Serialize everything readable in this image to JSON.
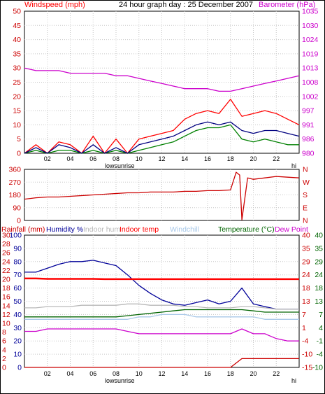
{
  "header": {
    "left_label": "Windspeed (mph)",
    "title": "24 hour graph day : 25 December 2007",
    "right_label": "Barometer (hPa)"
  },
  "x_axis": {
    "ticks": [
      "02",
      "04",
      "06",
      "08",
      "10",
      "12",
      "14",
      "16",
      "18",
      "20",
      "22"
    ],
    "sun_labels": [
      "low",
      "sunrise"
    ],
    "tail_label": "hi"
  },
  "bottom_header": {
    "rainfall": "Rainfall (mm)",
    "humidity": "Humidity %",
    "indoor_hum": "Indoor hum",
    "indoor_temp": "Indoor temp",
    "windchill": "Windchill",
    "temperature": "Temperature (°C)",
    "dew_point": "Dew Point"
  },
  "colors": {
    "windspeed": "#ff0000",
    "gust": "#008000",
    "avg": "#000080",
    "barometer": "#cc00cc",
    "direction": "#cc0000",
    "humidity": "#000099",
    "indoor_hum": "#b8b8b8",
    "indoor_temp": "#ff0000",
    "windchill": "#a8c8e8",
    "temperature": "#006400",
    "dew_point": "#cc00cc",
    "rainfall": "#cc0000"
  },
  "chart_data": [
    {
      "type": "line",
      "panel": "wind",
      "y_left_ticks": [
        "0",
        "5",
        "10",
        "15",
        "20",
        "25",
        "30",
        "35",
        "40",
        "45",
        "50"
      ],
      "y_right_ticks": [
        "980",
        "986",
        "991",
        "997",
        "1002",
        "1008",
        "1013",
        "1019",
        "1024",
        "1030",
        "1035"
      ],
      "ylim_left": [
        0,
        50
      ],
      "ylim_right": [
        980,
        1035
      ],
      "x": [
        0,
        1,
        2,
        3,
        4,
        5,
        6,
        7,
        8,
        9,
        10,
        11,
        12,
        13,
        14,
        15,
        16,
        17,
        18,
        19,
        20,
        21,
        22,
        23,
        24
      ],
      "series": [
        {
          "key": "windspeed",
          "axis": "left",
          "values": [
            0,
            3,
            0,
            4,
            3,
            0,
            6,
            0,
            5,
            0,
            5,
            6,
            7,
            8,
            12,
            14,
            15,
            14,
            19,
            13,
            14,
            15,
            14,
            12,
            10
          ]
        },
        {
          "key": "gust",
          "axis": "left",
          "values": [
            0,
            1,
            0,
            1,
            1,
            0,
            1,
            0,
            1,
            0,
            1,
            2,
            3,
            4,
            6,
            8,
            9,
            9,
            10,
            5,
            4,
            5,
            4,
            3,
            3
          ]
        },
        {
          "key": "avg",
          "axis": "left",
          "values": [
            0,
            2,
            0,
            3,
            2,
            0,
            3,
            0,
            2,
            0,
            3,
            4,
            5,
            6,
            8,
            10,
            11,
            10,
            11,
            8,
            7,
            8,
            8,
            7,
            6
          ]
        },
        {
          "key": "barometer",
          "axis": "right",
          "values": [
            1013,
            1012,
            1012,
            1012,
            1011,
            1011,
            1011,
            1011,
            1010,
            1010,
            1009,
            1008,
            1007,
            1006,
            1005,
            1005,
            1005,
            1004,
            1004,
            1005,
            1006,
            1007,
            1008,
            1009,
            1010
          ]
        }
      ]
    },
    {
      "type": "line",
      "panel": "direction",
      "y_left_ticks": [
        "0",
        "90",
        "180",
        "270",
        "360"
      ],
      "y_right_ticks": [
        "N",
        "E",
        "S",
        "W",
        "N"
      ],
      "ylim": [
        0,
        360
      ],
      "x": [
        0,
        1,
        2,
        3,
        4,
        5,
        6,
        7,
        8,
        9,
        10,
        11,
        12,
        13,
        14,
        15,
        16,
        17,
        18,
        18.5,
        18.8,
        19,
        19.5,
        20,
        21,
        22,
        23,
        24
      ],
      "series": [
        {
          "key": "direction",
          "values": [
            150,
            160,
            165,
            165,
            170,
            175,
            180,
            185,
            190,
            195,
            195,
            200,
            200,
            200,
            205,
            205,
            210,
            210,
            215,
            340,
            320,
            5,
            300,
            290,
            300,
            310,
            305,
            300
          ]
        }
      ]
    },
    {
      "type": "line",
      "panel": "climate",
      "y_ticks_rain": [
        "0",
        "2",
        "4",
        "6",
        "8",
        "10",
        "12",
        "14",
        "16",
        "18",
        "20",
        "22",
        "24",
        "26",
        "28",
        "30"
      ],
      "y_ticks_hum": [
        "0",
        "10",
        "20",
        "30",
        "40",
        "50",
        "60",
        "70",
        "80",
        "90",
        "100"
      ],
      "y_ticks_temp_a": [
        "-15",
        "-10",
        "-4",
        "1",
        "7",
        "13",
        "18",
        "24",
        "29",
        "35",
        "40"
      ],
      "y_ticks_temp_b": [
        "-10",
        "-4",
        "-1",
        "4",
        "7",
        "13",
        "18",
        "24",
        "29",
        "35",
        "40"
      ],
      "ylim_rain": [
        0,
        30
      ],
      "ylim_hum": [
        0,
        100
      ],
      "ylim_temp": [
        -15,
        40
      ],
      "x": [
        0,
        1,
        2,
        3,
        4,
        5,
        6,
        7,
        8,
        9,
        10,
        11,
        12,
        13,
        14,
        15,
        16,
        17,
        18,
        19,
        20,
        21,
        22,
        23,
        24
      ],
      "series": [
        {
          "key": "humidity",
          "axis": "hum",
          "values": [
            72,
            72,
            75,
            78,
            80,
            80,
            81,
            79,
            77,
            70,
            62,
            56,
            51,
            48,
            47,
            49,
            51,
            48,
            50,
            60,
            48,
            46,
            44,
            44,
            44
          ]
        },
        {
          "key": "indoor_hum",
          "axis": "hum",
          "values": [
            45,
            45,
            46,
            46,
            46,
            47,
            47,
            47,
            47,
            48,
            48,
            47,
            47,
            47,
            46,
            46,
            45,
            45,
            45,
            46,
            46,
            45,
            44,
            44,
            44
          ]
        },
        {
          "key": "indoor_temp",
          "axis": "temp",
          "values": [
            22,
            22,
            21.8,
            21.8,
            21.8,
            21.8,
            21.8,
            21.7,
            21.7,
            21.7,
            21.7,
            21.7,
            21.7,
            21.7,
            21.7,
            21.7,
            21.7,
            21.7,
            21.7,
            21.7,
            21.7,
            21.7,
            21.7,
            21.7,
            21.7
          ]
        },
        {
          "key": "windchill",
          "axis": "temp",
          "values": [
            5,
            5,
            5,
            5,
            5,
            5,
            5,
            5,
            5,
            5,
            6,
            6,
            7,
            7,
            7,
            6,
            6,
            6,
            6,
            6,
            6,
            5,
            5,
            5,
            5
          ]
        },
        {
          "key": "temperature",
          "axis": "temp",
          "values": [
            6,
            6,
            6,
            6,
            6,
            6,
            6,
            6,
            6,
            6.5,
            7,
            7.5,
            8,
            8.5,
            9,
            9,
            9,
            9,
            9,
            9,
            8.5,
            8,
            8,
            8,
            8
          ]
        },
        {
          "key": "dew_point",
          "axis": "temp",
          "values": [
            0,
            0,
            1,
            1,
            1,
            1,
            1,
            1,
            1,
            0,
            -1,
            -1,
            -1,
            -1,
            -1,
            -1,
            -1,
            -1,
            -1,
            1,
            -1,
            -1,
            -3,
            -4,
            -4
          ]
        },
        {
          "key": "rainfall",
          "axis": "rain",
          "values": [
            0,
            0,
            0,
            0,
            0,
            0,
            0,
            0,
            0,
            0,
            0,
            0,
            0,
            0,
            0,
            0,
            0,
            0,
            0,
            2,
            2,
            2,
            2,
            2,
            2
          ]
        }
      ]
    }
  ]
}
